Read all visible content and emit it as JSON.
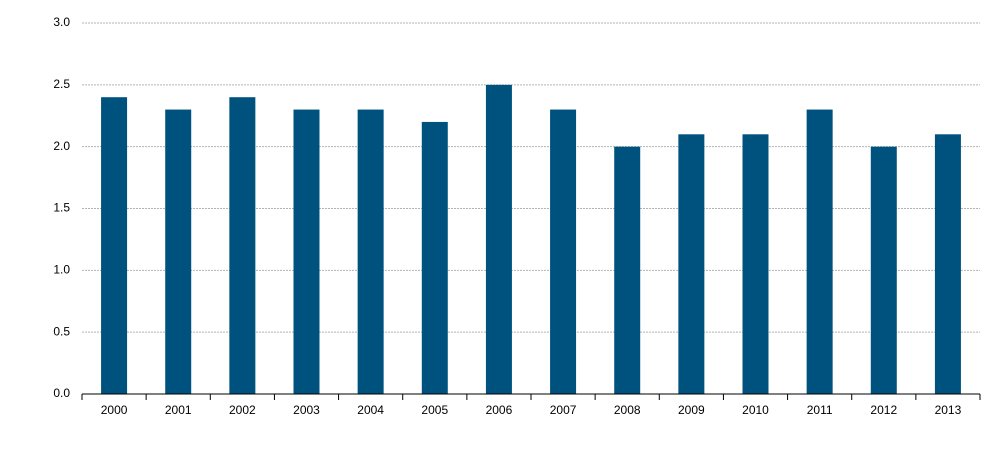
{
  "chart_data": {
    "type": "bar",
    "categories": [
      "2000",
      "2001",
      "2002",
      "2003",
      "2004",
      "2005",
      "2006",
      "2007",
      "2008",
      "2009",
      "2010",
      "2011",
      "2012",
      "2013"
    ],
    "values": [
      2.4,
      2.3,
      2.4,
      2.3,
      2.3,
      2.2,
      2.5,
      2.3,
      2.0,
      2.1,
      2.1,
      2.3,
      2.0,
      2.1
    ],
    "color": "#00527e",
    "ylim": [
      0,
      3
    ],
    "yticks": [
      {
        "value": 0,
        "label": "0.0"
      },
      0.5,
      {
        "value": 1,
        "label": "1.0"
      },
      1.5,
      {
        "value": 2,
        "label": "2.0"
      },
      2.5,
      {
        "value": 3,
        "label": "3.0"
      }
    ],
    "grid": true
  }
}
